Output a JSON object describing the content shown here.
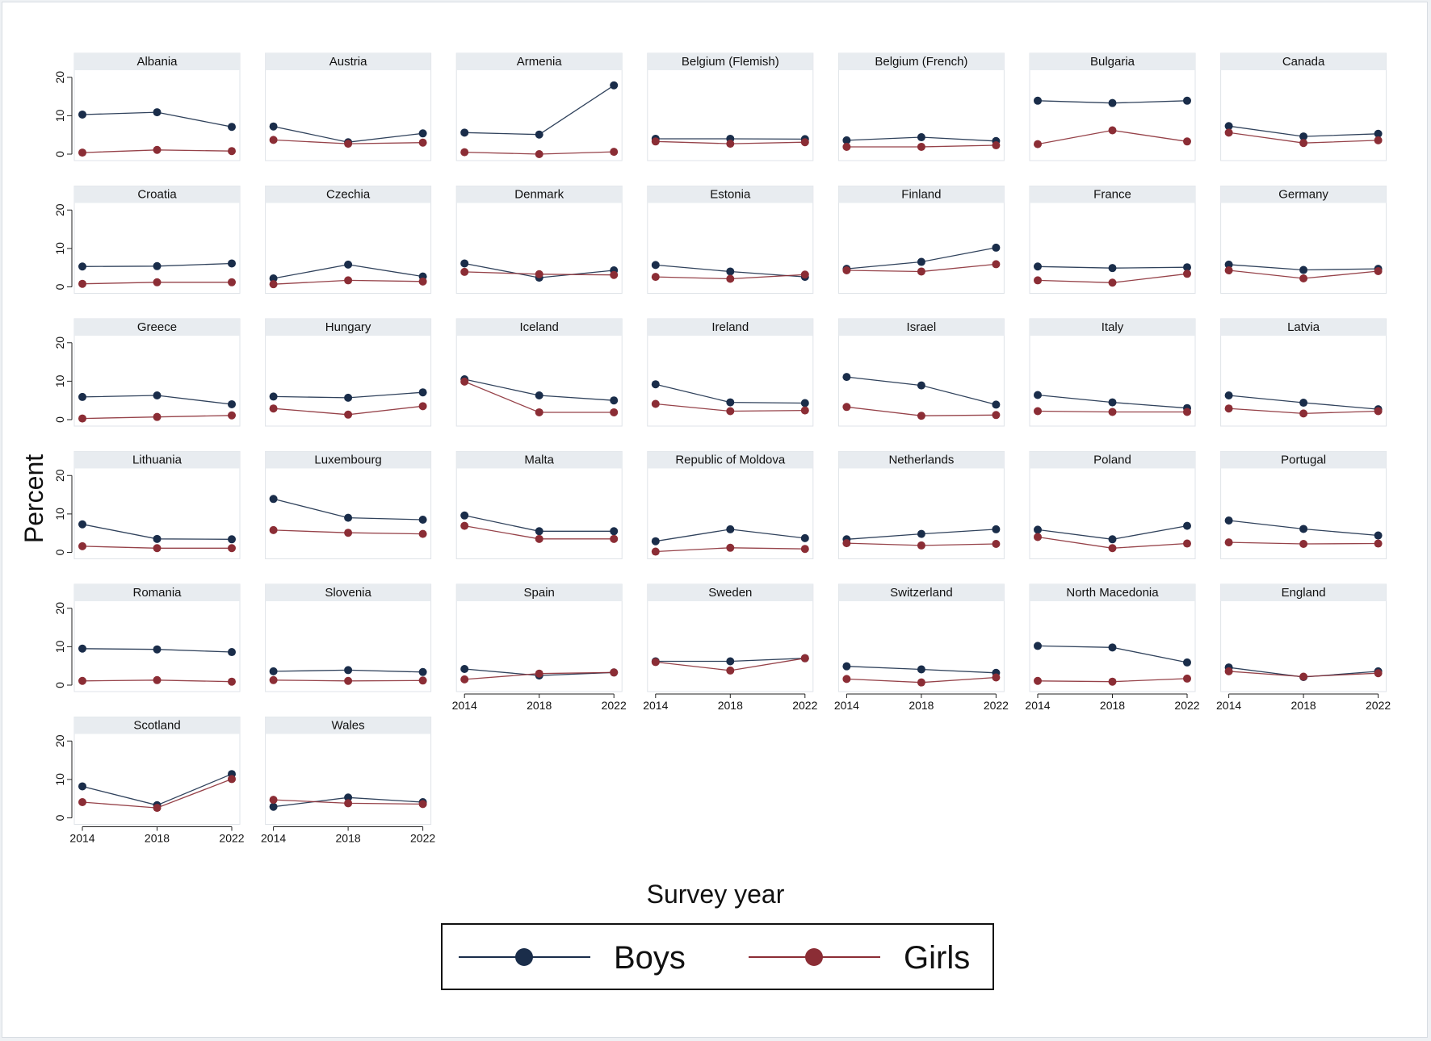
{
  "chart_data": {
    "type": "line",
    "ylabel": "Percent",
    "xlabel": "Survey year",
    "x": [
      2014,
      2018,
      2022
    ],
    "xticks": [
      "2014",
      "2018",
      "2022"
    ],
    "yticks": [
      "0",
      "10",
      "20"
    ],
    "ylim": [
      0,
      21
    ],
    "grid": false,
    "legend_position": "bottom-center",
    "series_styles": [
      {
        "name": "Boys",
        "color": "#1a2d4a"
      },
      {
        "name": "Girls",
        "color": "#8b2d35"
      }
    ],
    "panels": [
      {
        "title": "Albania",
        "boys": [
          10.3,
          10.9,
          7.1
        ],
        "girls": [
          0.4,
          1.1,
          0.8
        ]
      },
      {
        "title": "Austria",
        "boys": [
          7.2,
          3.1,
          5.4
        ],
        "girls": [
          3.7,
          2.7,
          3.0
        ]
      },
      {
        "title": "Armenia",
        "boys": [
          5.6,
          5.1,
          17.9
        ],
        "girls": [
          0.5,
          0.0,
          0.6
        ]
      },
      {
        "title": "Belgium (Flemish)",
        "boys": [
          4.0,
          4.0,
          3.9
        ],
        "girls": [
          3.3,
          2.7,
          3.1
        ]
      },
      {
        "title": "Belgium (French)",
        "boys": [
          3.6,
          4.4,
          3.4
        ],
        "girls": [
          1.9,
          1.9,
          2.3
        ]
      },
      {
        "title": "Bulgaria",
        "boys": [
          13.9,
          13.3,
          13.9
        ],
        "girls": [
          2.6,
          6.2,
          3.3
        ]
      },
      {
        "title": "Canada",
        "boys": [
          7.3,
          4.6,
          5.3
        ],
        "girls": [
          5.6,
          2.9,
          3.6
        ]
      },
      {
        "title": "Croatia",
        "boys": [
          5.3,
          5.4,
          6.1
        ],
        "girls": [
          0.8,
          1.2,
          1.2
        ]
      },
      {
        "title": "Czechia",
        "boys": [
          2.2,
          5.8,
          2.7
        ],
        "girls": [
          0.7,
          1.7,
          1.4
        ]
      },
      {
        "title": "Denmark",
        "boys": [
          6.1,
          2.4,
          4.3
        ],
        "girls": [
          3.9,
          3.3,
          3.1
        ]
      },
      {
        "title": "Estonia",
        "boys": [
          5.7,
          4.0,
          2.6
        ],
        "girls": [
          2.6,
          2.1,
          3.2
        ]
      },
      {
        "title": "Finland",
        "boys": [
          4.7,
          6.5,
          10.2
        ],
        "girls": [
          4.3,
          4.0,
          5.9
        ]
      },
      {
        "title": "France",
        "boys": [
          5.3,
          4.9,
          5.1
        ],
        "girls": [
          1.7,
          1.1,
          3.4
        ]
      },
      {
        "title": "Germany",
        "boys": [
          5.8,
          4.4,
          4.7
        ],
        "girls": [
          4.3,
          2.2,
          4.1
        ]
      },
      {
        "title": "Greece",
        "boys": [
          5.9,
          6.3,
          4.0
        ],
        "girls": [
          0.3,
          0.7,
          1.1
        ]
      },
      {
        "title": "Hungary",
        "boys": [
          6.0,
          5.7,
          7.1
        ],
        "girls": [
          2.9,
          1.3,
          3.5
        ]
      },
      {
        "title": "Iceland",
        "boys": [
          10.5,
          6.3,
          5.0
        ],
        "girls": [
          9.9,
          1.9,
          1.9
        ]
      },
      {
        "title": "Ireland",
        "boys": [
          9.2,
          4.5,
          4.3
        ],
        "girls": [
          4.1,
          2.2,
          2.4
        ]
      },
      {
        "title": "Israel",
        "boys": [
          11.1,
          8.9,
          3.9
        ],
        "girls": [
          3.3,
          1.0,
          1.2
        ]
      },
      {
        "title": "Italy",
        "boys": [
          6.4,
          4.5,
          3.0
        ],
        "girls": [
          2.2,
          2.0,
          2.0
        ]
      },
      {
        "title": "Latvia",
        "boys": [
          6.3,
          4.4,
          2.7
        ],
        "girls": [
          2.9,
          1.6,
          2.2
        ]
      },
      {
        "title": "Lithuania",
        "boys": [
          7.3,
          3.5,
          3.4
        ],
        "girls": [
          1.6,
          1.1,
          1.1
        ]
      },
      {
        "title": "Luxembourg",
        "boys": [
          13.9,
          9.0,
          8.5
        ],
        "girls": [
          5.8,
          5.1,
          4.8
        ]
      },
      {
        "title": "Malta",
        "boys": [
          9.6,
          5.5,
          5.5
        ],
        "girls": [
          6.9,
          3.5,
          3.5
        ]
      },
      {
        "title": "Republic of Moldova",
        "boys": [
          2.9,
          6.0,
          3.7
        ],
        "girls": [
          0.2,
          1.2,
          0.9
        ]
      },
      {
        "title": "Netherlands",
        "boys": [
          3.4,
          4.8,
          6.0
        ],
        "girls": [
          2.4,
          1.8,
          2.2
        ]
      },
      {
        "title": "Poland",
        "boys": [
          5.9,
          3.4,
          6.9
        ],
        "girls": [
          4.0,
          1.1,
          2.3
        ]
      },
      {
        "title": "Portugal",
        "boys": [
          8.3,
          6.1,
          4.4
        ],
        "girls": [
          2.6,
          2.2,
          2.3
        ]
      },
      {
        "title": "Romania",
        "boys": [
          9.5,
          9.3,
          8.6
        ],
        "girls": [
          1.1,
          1.3,
          0.9
        ]
      },
      {
        "title": "Slovenia",
        "boys": [
          3.6,
          3.9,
          3.4
        ],
        "girls": [
          1.3,
          1.1,
          1.2
        ]
      },
      {
        "title": "Spain",
        "boys": [
          4.2,
          2.5,
          3.3
        ],
        "girls": [
          1.5,
          3.0,
          3.3
        ]
      },
      {
        "title": "Sweden",
        "boys": [
          6.2,
          6.2,
          7.0
        ],
        "girls": [
          6.0,
          3.8,
          7.0
        ]
      },
      {
        "title": "Switzerland",
        "boys": [
          4.9,
          4.1,
          3.2
        ],
        "girls": [
          1.6,
          0.7,
          2.0
        ]
      },
      {
        "title": "North Macedonia",
        "boys": [
          10.2,
          9.8,
          5.9
        ],
        "girls": [
          1.1,
          0.9,
          1.7
        ]
      },
      {
        "title": "England",
        "boys": [
          4.6,
          2.1,
          3.6
        ],
        "girls": [
          3.6,
          2.2,
          3.1
        ]
      },
      {
        "title": "Scotland",
        "boys": [
          8.2,
          3.3,
          11.4
        ],
        "girls": [
          4.1,
          2.6,
          10.1
        ]
      },
      {
        "title": "Wales",
        "boys": [
          2.9,
          5.3,
          4.1
        ],
        "girls": [
          4.7,
          3.8,
          3.6
        ]
      }
    ]
  }
}
